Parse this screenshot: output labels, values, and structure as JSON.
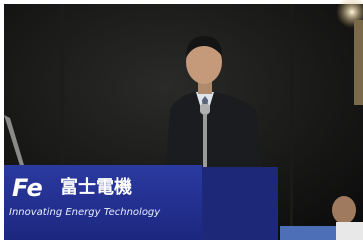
{
  "podium": {
    "logo": "Fe",
    "brand": "富士電機",
    "tagline": "Innovating Energy Technology"
  }
}
